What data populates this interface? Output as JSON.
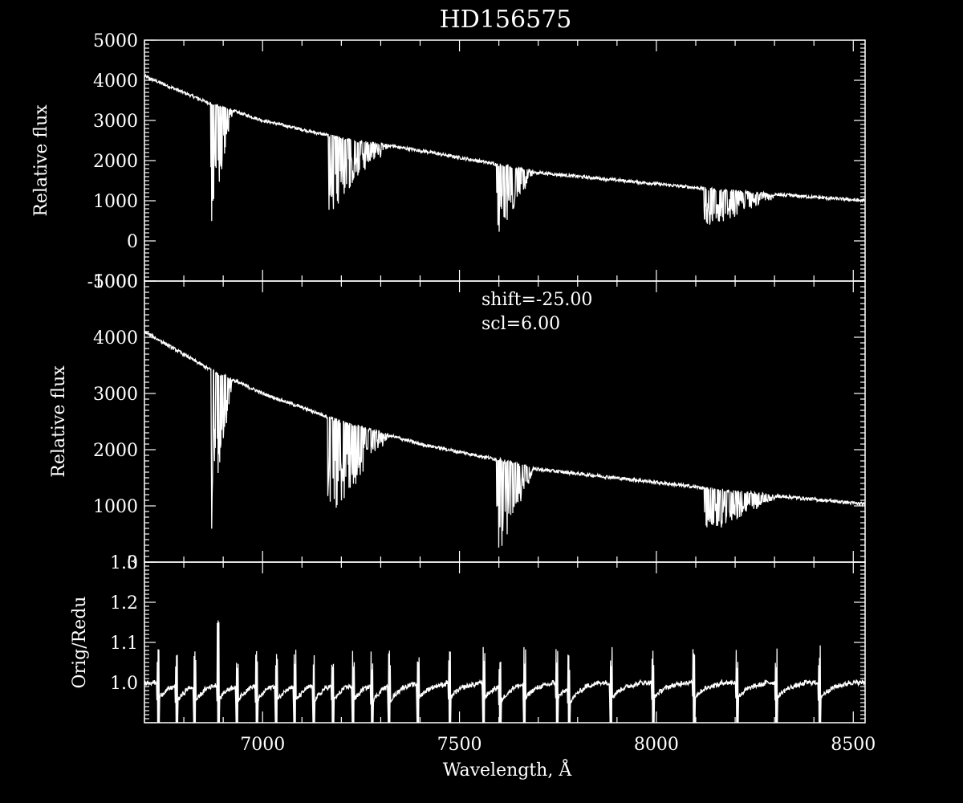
{
  "chart_data": {
    "type": "line",
    "title": "HD156575",
    "xlabel": "Wavelength, Å",
    "xlim": [
      6700,
      8530
    ],
    "xticks": [
      7000,
      7500,
      8000,
      8500
    ],
    "panels": [
      {
        "id": "original",
        "ylabel": "Relative flux",
        "ylim": [
          -1000,
          5000
        ],
        "yticks": [
          -1000,
          0,
          1000,
          2000,
          3000,
          4000,
          5000
        ],
        "continuum": [
          [
            6700,
            4100
          ],
          [
            6860,
            3450
          ],
          [
            7000,
            3000
          ],
          [
            7200,
            2550
          ],
          [
            7400,
            2250
          ],
          [
            7600,
            1900
          ],
          [
            7700,
            1700
          ],
          [
            8000,
            1420
          ],
          [
            8200,
            1230
          ],
          [
            8530,
            1000
          ]
        ],
        "absorption_bands": [
          {
            "start": 6868,
            "end": 6930,
            "depth": 3300
          },
          {
            "start": 7165,
            "end": 7340,
            "depth": 2000
          },
          {
            "start": 7594,
            "end": 7700,
            "depth": 1850
          },
          {
            "start": 8120,
            "end": 8330,
            "depth": 1050
          }
        ],
        "noise": 80
      },
      {
        "id": "reduced",
        "ylabel": "Relative flux",
        "ylim": [
          0,
          5000
        ],
        "yticks": [
          0,
          1000,
          2000,
          3000,
          4000,
          5000
        ],
        "annotations": [
          "shift=-25.00",
          "scl=6.00"
        ],
        "continuum": [
          [
            6700,
            4100
          ],
          [
            6860,
            3450
          ],
          [
            7000,
            3000
          ],
          [
            7200,
            2500
          ],
          [
            7400,
            2100
          ],
          [
            7600,
            1820
          ],
          [
            7700,
            1650
          ],
          [
            8000,
            1420
          ],
          [
            8200,
            1250
          ],
          [
            8530,
            1030
          ]
        ],
        "absorption_bands": [
          {
            "start": 6868,
            "end": 6930,
            "depth": 3200
          },
          {
            "start": 7165,
            "end": 7340,
            "depth": 1900
          },
          {
            "start": 7594,
            "end": 7700,
            "depth": 1800
          },
          {
            "start": 8120,
            "end": 8330,
            "depth": 850
          }
        ],
        "noise": 60
      },
      {
        "id": "ratio",
        "ylabel": "Orig/Redu",
        "ylim": [
          0.9,
          1.3
        ],
        "yticks": [
          1.0,
          1.1,
          1.2,
          1.3
        ],
        "baseline": 1.0,
        "spike_positions": [
          6735,
          6782,
          6828,
          6888,
          6935,
          6985,
          7035,
          7082,
          7130,
          7178,
          7230,
          7278,
          7322,
          7395,
          7475,
          7562,
          7603,
          7665,
          7748,
          7778,
          7885,
          7992,
          8095,
          8205,
          8305,
          8415
        ],
        "spike_max": 1.2
      }
    ]
  },
  "colors": {
    "background": "#000000",
    "foreground": "#ffffff"
  }
}
